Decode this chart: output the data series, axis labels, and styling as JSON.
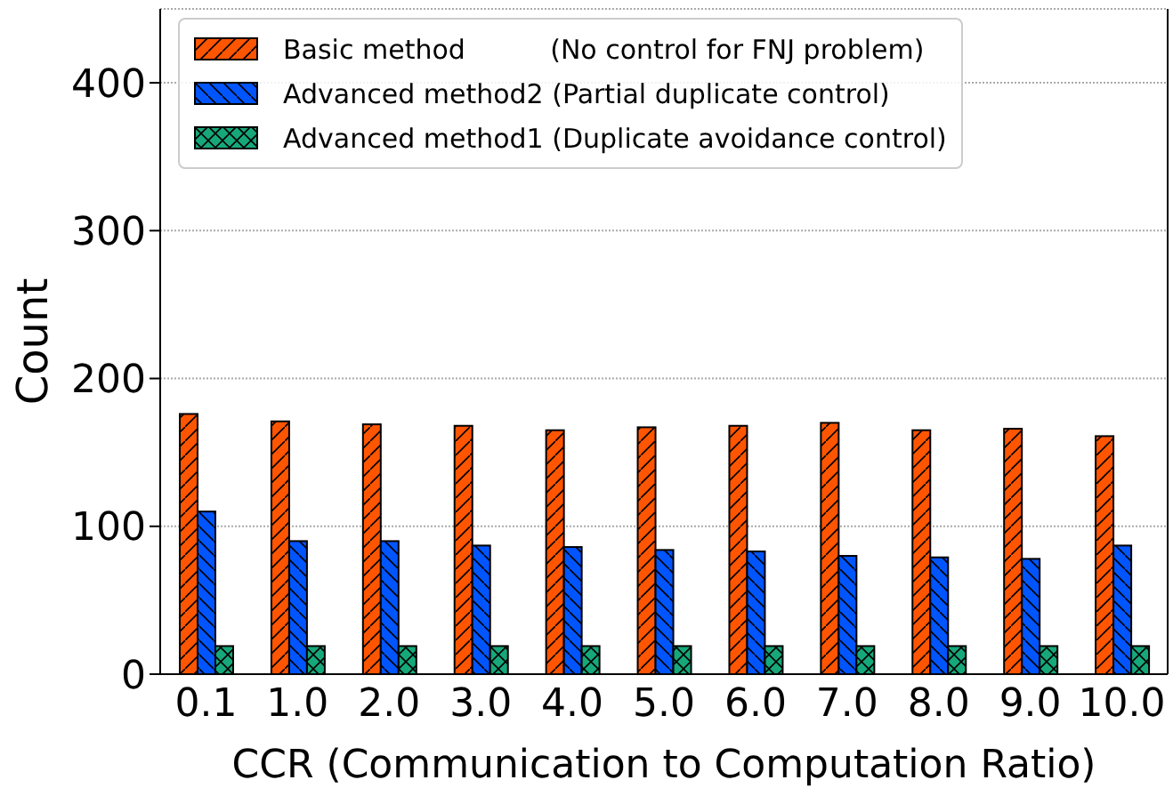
{
  "chart_data": {
    "type": "bar",
    "xlabel": "CCR (Communication to Computation Ratio)",
    "ylabel": "Count",
    "categories": [
      "0.1",
      "1.0",
      "2.0",
      "3.0",
      "4.0",
      "5.0",
      "6.0",
      "7.0",
      "8.0",
      "9.0",
      "10.0"
    ],
    "series": [
      {
        "name": "Basic method          (No control for FNJ problem)",
        "color": "#ff5500",
        "values": [
          176,
          171,
          169,
          168,
          165,
          167,
          168,
          170,
          165,
          166,
          161
        ]
      },
      {
        "name": "Advanced method2 (Partial duplicate control)",
        "color": "#0055ff",
        "values": [
          110,
          90,
          90,
          87,
          86,
          84,
          83,
          80,
          79,
          78,
          87
        ]
      },
      {
        "name": "Advanced method1 (Duplicate avoidance control)",
        "color": "#16a87a",
        "values": [
          19,
          19,
          19,
          19,
          19,
          19,
          19,
          19,
          19,
          19,
          19
        ]
      }
    ],
    "ylim": [
      0,
      450
    ],
    "yticks": [
      0,
      100,
      200,
      300,
      400
    ],
    "grid": "y",
    "legend": "top left"
  }
}
